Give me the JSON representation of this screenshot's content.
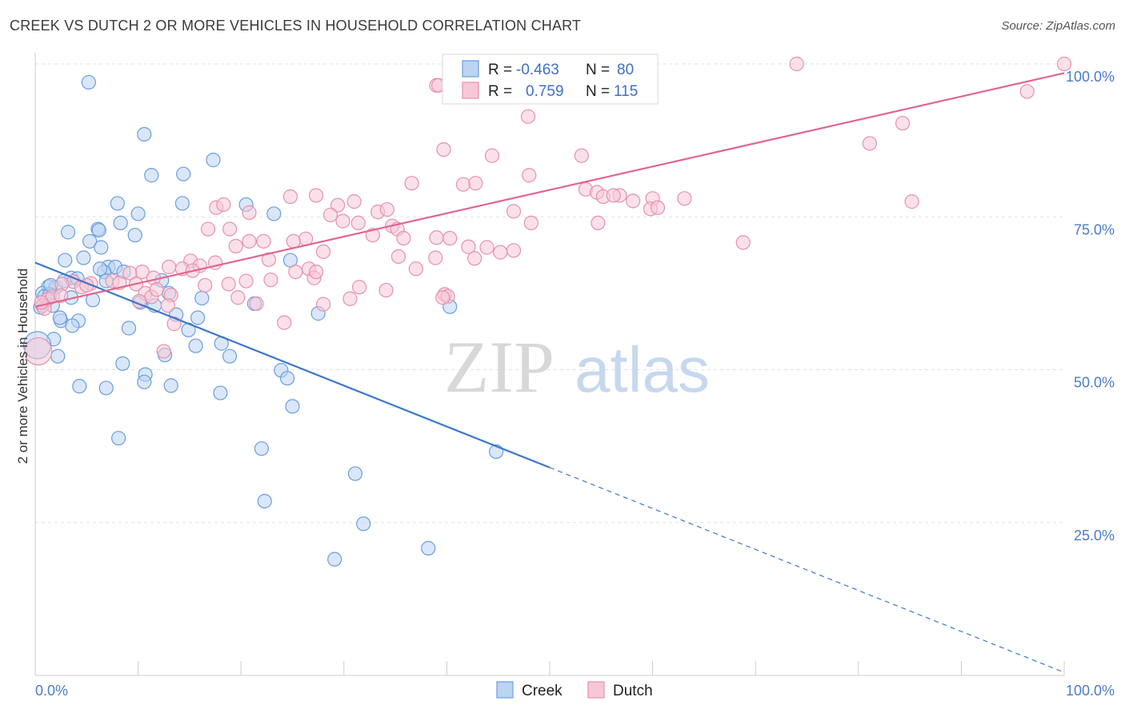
{
  "title": "CREEK VS DUTCH 2 OR MORE VEHICLES IN HOUSEHOLD CORRELATION CHART",
  "source": "Source: ZipAtlas.com",
  "watermark": {
    "zip": "ZIP",
    "atlas": "atlas"
  },
  "chart_data": {
    "type": "scatter",
    "xlabel": "",
    "ylabel": "2 or more Vehicles in Household",
    "xlim": [
      0,
      100
    ],
    "ylim": [
      0,
      100
    ],
    "x_tick_labels": [
      "0.0%",
      "100.0%"
    ],
    "y_ticks": [
      {
        "value": 25,
        "label": "25.0%"
      },
      {
        "value": 50,
        "label": "50.0%"
      },
      {
        "value": 75,
        "label": "75.0%"
      },
      {
        "value": 100,
        "label": "100.0%"
      }
    ],
    "grid": true,
    "legend": {
      "placement": "top-center",
      "entries": [
        {
          "r_label": "R =",
          "r_value": "-0.463",
          "n_label": "N =",
          "n_value": "80"
        },
        {
          "r_label": "R =",
          "r_value": "0.759",
          "n_label": "N =",
          "n_value": "115"
        }
      ]
    },
    "series": [
      {
        "name": "Creek",
        "color": "#6a9ee0",
        "fill": "#bcd3f2",
        "line_color": "#3a78c9",
        "trend": {
          "x0": 0,
          "y0": 67.5,
          "x1": 50,
          "y1": 34,
          "dash_to_x": 100,
          "dash_to_y": 0.5
        },
        "points": [
          [
            5.2,
            97
          ],
          [
            10.6,
            88.5
          ],
          [
            11.3,
            81.8
          ],
          [
            14.4,
            82
          ],
          [
            17.3,
            84.3
          ],
          [
            14.3,
            77.2
          ],
          [
            8,
            77.2
          ],
          [
            10,
            75.5
          ],
          [
            20.5,
            77
          ],
          [
            23.2,
            75.5
          ],
          [
            8.3,
            74
          ],
          [
            3.2,
            72.5
          ],
          [
            6.1,
            73
          ],
          [
            6.2,
            72.8
          ],
          [
            9.7,
            72
          ],
          [
            5.3,
            71
          ],
          [
            6.4,
            70
          ],
          [
            2.9,
            67.9
          ],
          [
            4.7,
            68.3
          ],
          [
            24.8,
            67.9
          ],
          [
            7.1,
            66.8
          ],
          [
            7.8,
            66.8
          ],
          [
            6.7,
            66
          ],
          [
            8.6,
            66
          ],
          [
            3.5,
            65
          ],
          [
            4.1,
            64.9
          ],
          [
            6.9,
            64.5
          ],
          [
            1.3,
            63.6
          ],
          [
            2,
            63.5
          ],
          [
            0.7,
            62.5
          ],
          [
            0.9,
            62
          ],
          [
            1.4,
            62.3
          ],
          [
            3.5,
            61.8
          ],
          [
            5.6,
            61.4
          ],
          [
            10.2,
            61
          ],
          [
            13,
            62.5
          ],
          [
            16.2,
            61.7
          ],
          [
            11.6,
            60.5
          ],
          [
            21.3,
            60.8
          ],
          [
            0.5,
            60.2
          ],
          [
            1.7,
            60.5
          ],
          [
            2.5,
            58
          ],
          [
            2.4,
            58.5
          ],
          [
            4.2,
            58
          ],
          [
            13.7,
            59
          ],
          [
            15.8,
            58.5
          ],
          [
            27.5,
            59.2
          ],
          [
            40.3,
            60.3
          ],
          [
            3.6,
            57.2
          ],
          [
            9.1,
            56.8
          ],
          [
            14.9,
            56.5
          ],
          [
            1.8,
            55
          ],
          [
            15.6,
            53.9
          ],
          [
            18.1,
            54.3
          ],
          [
            2.2,
            52.2
          ],
          [
            12.6,
            52.4
          ],
          [
            18.9,
            52.2
          ],
          [
            8.5,
            51
          ],
          [
            10.7,
            49.2
          ],
          [
            23.9,
            49.9
          ],
          [
            24.5,
            48.6
          ],
          [
            10.6,
            48
          ],
          [
            4.3,
            47.3
          ],
          [
            6.9,
            47
          ],
          [
            13.2,
            47.4
          ],
          [
            18,
            46.2
          ],
          [
            25,
            44
          ],
          [
            8.1,
            38.8
          ],
          [
            44.8,
            36.6
          ],
          [
            22,
            37.1
          ],
          [
            31.1,
            33
          ],
          [
            22.3,
            28.5
          ],
          [
            31.9,
            24.8
          ],
          [
            38.2,
            20.8
          ],
          [
            29.1,
            19
          ],
          [
            0.2,
            54
          ],
          [
            1.5,
            63.8
          ],
          [
            2.8,
            64.5
          ],
          [
            6.3,
            66.5
          ],
          [
            12.3,
            64.6
          ]
        ]
      },
      {
        "name": "Dutch",
        "color": "#e890ad",
        "fill": "#f6c8d7",
        "line_color": "#e0668f",
        "trend": {
          "x0": 0,
          "y0": 60.3,
          "x1": 100,
          "y1": 98.5
        },
        "points": [
          [
            74,
            100
          ],
          [
            100,
            100
          ],
          [
            39,
            96.5
          ],
          [
            39.2,
            96.5
          ],
          [
            96.4,
            95.5
          ],
          [
            47.9,
            91.4
          ],
          [
            84.3,
            90.3
          ],
          [
            81.1,
            87
          ],
          [
            39.7,
            86
          ],
          [
            44.4,
            85
          ],
          [
            53.1,
            85
          ],
          [
            48,
            81.8
          ],
          [
            36.6,
            80.5
          ],
          [
            41.6,
            80.3
          ],
          [
            42.8,
            80.5
          ],
          [
            53.5,
            79.5
          ],
          [
            54.6,
            79
          ],
          [
            55.2,
            78.3
          ],
          [
            56.8,
            78.5
          ],
          [
            58.1,
            77.6
          ],
          [
            56.2,
            78.5
          ],
          [
            24.8,
            78.3
          ],
          [
            27.3,
            78.5
          ],
          [
            31,
            77.5
          ],
          [
            60,
            78
          ],
          [
            63.1,
            78
          ],
          [
            85.2,
            77.5
          ],
          [
            17.6,
            76.5
          ],
          [
            18.3,
            77
          ],
          [
            20.8,
            75.7
          ],
          [
            29.4,
            76.9
          ],
          [
            33.3,
            75.8
          ],
          [
            34.2,
            76.2
          ],
          [
            46.5,
            75.9
          ],
          [
            59.8,
            76.3
          ],
          [
            28.7,
            75.3
          ],
          [
            29.9,
            74.3
          ],
          [
            31.4,
            74
          ],
          [
            34.7,
            73.5
          ],
          [
            35.2,
            73
          ],
          [
            48.2,
            74
          ],
          [
            54.7,
            74
          ],
          [
            18.9,
            73
          ],
          [
            32.8,
            72
          ],
          [
            35.8,
            71.5
          ],
          [
            39,
            71.6
          ],
          [
            40.3,
            71.5
          ],
          [
            20.8,
            71
          ],
          [
            22.2,
            71
          ],
          [
            26.3,
            71.4
          ],
          [
            42.1,
            70.1
          ],
          [
            43.9,
            70
          ],
          [
            45.2,
            69.2
          ],
          [
            46.5,
            69.5
          ],
          [
            68.8,
            70.8
          ],
          [
            19.5,
            70.2
          ],
          [
            28,
            69.3
          ],
          [
            35.3,
            68.5
          ],
          [
            38.9,
            68.3
          ],
          [
            42.7,
            68.2
          ],
          [
            22.7,
            68
          ],
          [
            15.1,
            67.8
          ],
          [
            16,
            67
          ],
          [
            17.5,
            67.5
          ],
          [
            13,
            66.8
          ],
          [
            14.3,
            66.5
          ],
          [
            15.3,
            66.2
          ],
          [
            25.3,
            66
          ],
          [
            26.6,
            66.5
          ],
          [
            37,
            66.5
          ],
          [
            10.4,
            66
          ],
          [
            9.2,
            65.8
          ],
          [
            11.5,
            65
          ],
          [
            20.5,
            64.5
          ],
          [
            22.9,
            64.7
          ],
          [
            3.7,
            64.4
          ],
          [
            5.4,
            64.1
          ],
          [
            7.5,
            64.5
          ],
          [
            8.2,
            64.2
          ],
          [
            9.8,
            64
          ],
          [
            2.6,
            64
          ],
          [
            4.5,
            63.5
          ],
          [
            5,
            63.8
          ],
          [
            16.5,
            63.8
          ],
          [
            18.8,
            64
          ],
          [
            31.5,
            63.5
          ],
          [
            34.1,
            63
          ],
          [
            10.7,
            62.5
          ],
          [
            11.3,
            61.9
          ],
          [
            13.2,
            62.2
          ],
          [
            19.7,
            61.8
          ],
          [
            30.6,
            61.6
          ],
          [
            39.8,
            62.3
          ],
          [
            40.1,
            62
          ],
          [
            1.2,
            61.5
          ],
          [
            1.7,
            62
          ],
          [
            2.5,
            62.1
          ],
          [
            10.1,
            61.2
          ],
          [
            21.5,
            60.8
          ],
          [
            28,
            60.7
          ],
          [
            0.7,
            60.5
          ],
          [
            0.9,
            60
          ],
          [
            12.9,
            60.5
          ],
          [
            13.5,
            57.5
          ],
          [
            24.2,
            57.7
          ],
          [
            12.5,
            53
          ],
          [
            0.3,
            53
          ],
          [
            0.6,
            61
          ],
          [
            16.8,
            73
          ],
          [
            60.5,
            76.5
          ],
          [
            25.1,
            71
          ],
          [
            27.1,
            65
          ],
          [
            11.8,
            63.1
          ],
          [
            39.6,
            61.8
          ],
          [
            27.3,
            66
          ]
        ]
      }
    ]
  }
}
